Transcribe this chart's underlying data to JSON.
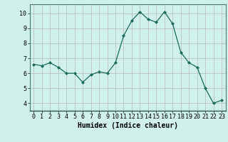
{
  "x": [
    0,
    1,
    2,
    3,
    4,
    5,
    6,
    7,
    8,
    9,
    10,
    11,
    12,
    13,
    14,
    15,
    16,
    17,
    18,
    19,
    20,
    21,
    22,
    23
  ],
  "y": [
    6.6,
    6.5,
    6.7,
    6.4,
    6.0,
    6.0,
    5.4,
    5.9,
    6.1,
    6.0,
    6.7,
    8.5,
    9.5,
    10.1,
    9.6,
    9.4,
    10.1,
    9.3,
    7.4,
    6.7,
    6.4,
    5.0,
    4.0,
    4.2
  ],
  "line_color": "#1a6b5a",
  "marker": "D",
  "markersize": 2.0,
  "linewidth": 0.9,
  "bg_color": "#cff0eb",
  "grid_color": "#b8b8b8",
  "xlabel": "Humidex (Indice chaleur)",
  "xlabel_fontsize": 7,
  "tick_fontsize": 6,
  "xlim": [
    -0.5,
    23.5
  ],
  "ylim": [
    3.5,
    10.6
  ],
  "yticks": [
    4,
    5,
    6,
    7,
    8,
    9,
    10
  ],
  "xticks": [
    0,
    1,
    2,
    3,
    4,
    5,
    6,
    7,
    8,
    9,
    10,
    11,
    12,
    13,
    14,
    15,
    16,
    17,
    18,
    19,
    20,
    21,
    22,
    23
  ]
}
